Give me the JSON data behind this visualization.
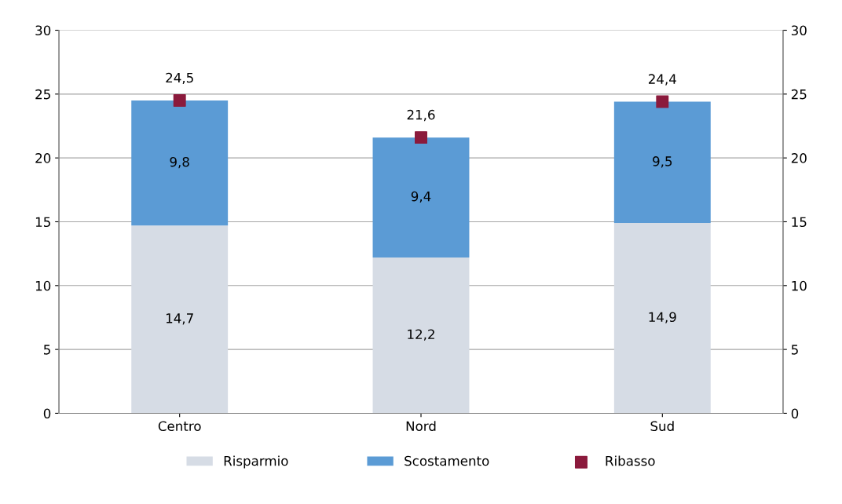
{
  "chart_data": {
    "type": "bar",
    "stacked": true,
    "categories": [
      "Centro",
      "Nord",
      "Sud"
    ],
    "series": [
      {
        "name": "Risparmio",
        "color": "#d6dce5",
        "values": [
          14.7,
          12.2,
          14.9
        ],
        "value_labels": [
          "14,7",
          "12,2",
          "14,9"
        ]
      },
      {
        "name": "Scostamento",
        "color": "#5b9bd5",
        "values": [
          9.8,
          9.4,
          9.5
        ],
        "value_labels": [
          "9,8",
          "9,4",
          "9,5"
        ]
      },
      {
        "name": "Ribasso",
        "type": "scatter",
        "color": "#8b1a3c",
        "marker": "square",
        "x": [
          "Centro",
          "Nord",
          "Sud"
        ],
        "values": [
          24.5,
          21.6,
          24.4
        ],
        "value_labels": [
          "24,5",
          "21,6",
          "24,4"
        ]
      }
    ],
    "ylim": [
      0,
      30
    ],
    "yticks": [
      0,
      5,
      10,
      15,
      20,
      25,
      30
    ],
    "y2lim": [
      0,
      30
    ],
    "y2ticks": [
      0,
      5,
      10,
      15,
      20,
      25,
      30
    ],
    "grid": "y",
    "legend": "bottom"
  }
}
